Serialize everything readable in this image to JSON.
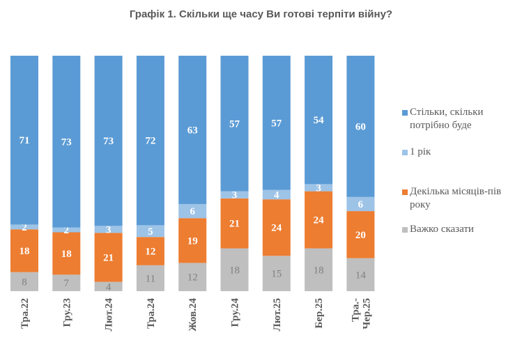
{
  "chart_data": {
    "type": "bar",
    "stacked": "100%",
    "title": "Графік 1. Скільки ще часу Ви готові терпіти війну?",
    "categories": [
      "Тра.22",
      "Гру.23",
      "Лют.24",
      "Тра.24",
      "Жов.24",
      "Гру.24",
      "Лют.25",
      "Бер.25",
      "Тра.-Чер.25"
    ],
    "series": [
      {
        "name": "Стільки, скільки потрібно буде",
        "color": "#5B9BD5",
        "label_color": "#ffffff",
        "values": [
          71,
          73,
          73,
          72,
          63,
          57,
          57,
          54,
          60
        ]
      },
      {
        "name": "1 рік",
        "color": "#9DC3E6",
        "label_color": "#ffffff",
        "values": [
          2,
          2,
          3,
          5,
          6,
          3,
          4,
          3,
          6
        ]
      },
      {
        "name": "Декілька місяців-пів року",
        "color": "#ED7D31",
        "label_color": "#ffffff",
        "values": [
          18,
          18,
          21,
          12,
          19,
          21,
          24,
          24,
          20
        ]
      },
      {
        "name": "Важко сказати",
        "color": "#BFBFBF",
        "label_color": "#7f7f7f",
        "values": [
          8,
          7,
          4,
          11,
          12,
          18,
          15,
          18,
          14
        ]
      }
    ],
    "legend_position": "right",
    "grid": false
  }
}
